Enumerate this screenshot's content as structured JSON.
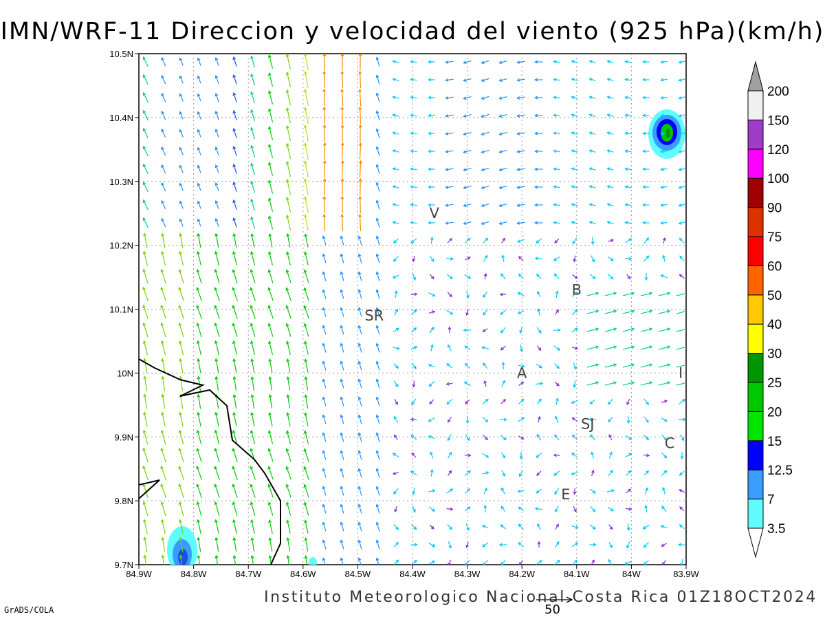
{
  "title": "IMN/WRF-11 Direccion y velocidad del viento (925 hPa)(km/h)",
  "credit": "Instituto Meteorologico Nacional Costa Rica 01Z18OCT2024",
  "software": "GrADS/COLA",
  "vector_scale_label": "50",
  "axes": {
    "lat_labels": [
      "10.5N",
      "10.4N",
      "10.3N",
      "10.2N",
      "10.1N",
      "10N",
      "9.9N",
      "9.8N",
      "9.7N"
    ],
    "lon_labels": [
      "84.9W",
      "84.8W",
      "84.7W",
      "84.6W",
      "84.5W",
      "84.4W",
      "84.3W",
      "84.2W",
      "84.1W",
      "84W",
      "83.9W"
    ],
    "lat_range": [
      9.7,
      10.5
    ],
    "lon_range": [
      -84.9,
      -83.9
    ],
    "grid": true
  },
  "colorbar": {
    "levels": [
      "3.5",
      "7",
      "12.5",
      "15",
      "20",
      "25",
      "30",
      "40",
      "50",
      "60",
      "75",
      "90",
      "100",
      "120",
      "150",
      "200"
    ],
    "colors": [
      "#5ffcff",
      "#3a9cff",
      "#0000ff",
      "#00e600",
      "#00c800",
      "#009600",
      "#ffff00",
      "#ffc800",
      "#ff6400",
      "#ff0000",
      "#dc3200",
      "#a00000",
      "#ff00ff",
      "#a03cc8",
      "#f0f0f0",
      "#a0a0a0"
    ]
  },
  "places": [
    {
      "label": "SR",
      "lon": -84.47,
      "lat": 10.09
    },
    {
      "label": "V",
      "lon": -84.36,
      "lat": 10.25
    },
    {
      "label": "B",
      "lon": -84.1,
      "lat": 10.13
    },
    {
      "label": "A",
      "lon": -84.2,
      "lat": 10.0
    },
    {
      "label": "SJ",
      "lon": -84.08,
      "lat": 9.92
    },
    {
      "label": "C",
      "lon": -83.93,
      "lat": 9.89
    },
    {
      "label": "E",
      "lon": -84.12,
      "lat": 9.81
    },
    {
      "label": "I",
      "lon": -83.91,
      "lat": 10.0
    }
  ],
  "chart_data": {
    "type": "vector-field",
    "title": "IMN/WRF-11 Direccion y velocidad del viento (925 hPa)(km/h)",
    "xlim": [
      -84.9,
      -83.9
    ],
    "ylim": [
      9.7,
      10.5
    ],
    "notes": "Wind vectors colored by speed (km/h); small shaded max near 10.37N 83.94W (15-25 km/h) and near 9.72N 84.81W (3.5-12.5 km/h)."
  }
}
